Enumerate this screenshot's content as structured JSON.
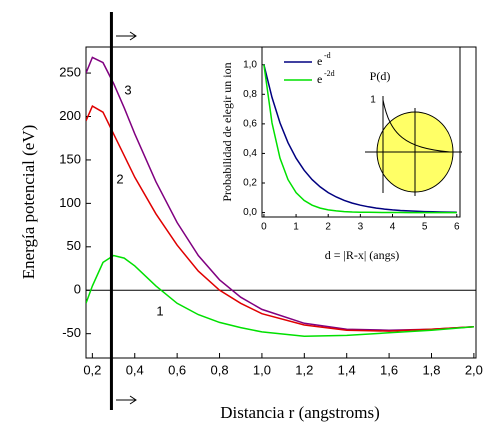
{
  "chart_data": [
    {
      "type": "line",
      "x_label": "Distancia r (angstroms)",
      "y_label": "Energía potencial (eV)",
      "x": [
        0.17,
        0.2,
        0.25,
        0.3,
        0.35,
        0.4,
        0.5,
        0.6,
        0.7,
        0.8,
        0.9,
        1.0,
        1.2,
        1.4,
        1.6,
        1.8,
        2.0
      ],
      "series": [
        {
          "color": "#800080",
          "values": [
            250,
            268,
            262,
            238,
            210,
            180,
            125,
            78,
            40,
            12,
            -8,
            -22,
            -38,
            -45,
            -46,
            -45,
            -42
          ]
        },
        {
          "color": "#e00000",
          "values": [
            195,
            212,
            205,
            180,
            155,
            130,
            88,
            52,
            22,
            0,
            -15,
            -27,
            -40,
            -46,
            -47,
            -45,
            -42
          ]
        },
        {
          "color": "#00e000",
          "values": [
            -15,
            5,
            32,
            40,
            37,
            28,
            5,
            -15,
            -28,
            -37,
            -43,
            -48,
            -53,
            -52,
            -49,
            -46,
            -42
          ]
        }
      ],
      "annotations": [
        "1",
        "2",
        "3"
      ],
      "vline": 0.29,
      "xlim": [
        0.17,
        2.01
      ],
      "ylim": [
        -78,
        280
      ],
      "xticks": [
        {
          "value": 0.2,
          "label": "0,2"
        },
        {
          "value": 0.4,
          "label": "0,4"
        },
        {
          "value": 0.6,
          "label": "0,6"
        },
        {
          "value": 0.8,
          "label": "0,8"
        },
        {
          "value": 1.0,
          "label": "1,0"
        },
        {
          "value": 1.2,
          "label": "1,2"
        },
        {
          "value": 1.4,
          "label": "1,4"
        },
        {
          "value": 1.6,
          "label": "1,6"
        },
        {
          "value": 1.8,
          "label": "1,8"
        },
        {
          "value": 2.0,
          "label": "2,0"
        }
      ],
      "yticks": [
        -50,
        0,
        50,
        100,
        150,
        200,
        250
      ]
    },
    {
      "type": "line",
      "x_label": "d = |R-x|  (angs)",
      "y_label": "Probabilidad de elegir un ion",
      "x": [
        0,
        0.25,
        0.5,
        0.75,
        1,
        1.25,
        1.5,
        1.75,
        2,
        2.25,
        2.5,
        2.75,
        3,
        3.25,
        3.5,
        3.75,
        4,
        4.25,
        4.5,
        4.75,
        5,
        5.25,
        5.5,
        5.75,
        6
      ],
      "series": [
        {
          "name": "e",
          "exponent": "-d",
          "color": "#000080",
          "values": [
            1,
            0.7788,
            0.6065,
            0.4724,
            0.3679,
            0.2865,
            0.2231,
            0.1738,
            0.1353,
            0.1054,
            0.0821,
            0.0639,
            0.0498,
            0.0388,
            0.0302,
            0.0235,
            0.0183,
            0.0143,
            0.0111,
            0.0087,
            0.0067,
            0.0052,
            0.0041,
            0.0032,
            0.0025
          ]
        },
        {
          "name": "e",
          "exponent": "-2d",
          "color": "#00e000",
          "values": [
            1,
            0.6065,
            0.3679,
            0.2231,
            0.1353,
            0.0821,
            0.0498,
            0.0302,
            0.0183,
            0.0111,
            0.0067,
            0.0041,
            0.0025,
            0.0015,
            0.0009,
            0.0006,
            0.0003,
            0.0002,
            0.0001,
            0.0001,
            0,
            0,
            0,
            0,
            0
          ]
        }
      ],
      "diagram_labels": [
        "P(d)",
        "1"
      ],
      "xlim": [
        -0.06,
        6.1
      ],
      "ylim": [
        -0.03,
        1.12
      ],
      "xticks": [
        0,
        1,
        2,
        3,
        4,
        5,
        6
      ],
      "yticks": [
        {
          "value": 0,
          "label": "0,0"
        },
        {
          "value": 0.2,
          "label": "0,2"
        },
        {
          "value": 0.4,
          "label": "0,4"
        },
        {
          "value": 0.6,
          "label": "0,6"
        },
        {
          "value": 0.8,
          "label": "0,8"
        },
        {
          "value": 1.0,
          "label": "1,0"
        }
      ]
    }
  ]
}
